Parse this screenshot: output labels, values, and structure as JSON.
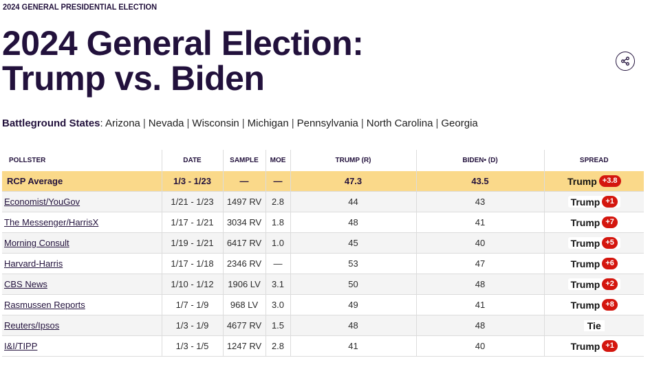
{
  "header": {
    "eyebrow": "2024 GENERAL PRESIDENTIAL ELECTION",
    "title_line1": "2024 General Election:",
    "title_line2": "Trump vs. Biden"
  },
  "battleground": {
    "label": "Battleground States",
    "states": [
      "Arizona",
      "Nevada",
      "Wisconsin",
      "Michigan",
      "Pennsylvania",
      "North Carolina",
      "Georgia"
    ]
  },
  "table": {
    "headers": {
      "pollster": "POLLSTER",
      "date": "DATE",
      "sample": "SAMPLE",
      "moe": "MOE",
      "trump": "TRUMP (R)",
      "biden": "BIDEN",
      "biden_marker": "•",
      "biden_party": "(D)",
      "spread": "SPREAD"
    },
    "average": {
      "pollster": "RCP Average",
      "date": "1/3 - 1/23",
      "sample": "—",
      "moe": "—",
      "trump": "47.3",
      "biden": "43.5",
      "spread_candidate": "Trump",
      "spread_value": "+3.8"
    },
    "rows": [
      {
        "pollster": "Economist/YouGov",
        "date": "1/21 - 1/23",
        "sample": "1497 RV",
        "moe": "2.8",
        "trump": "44",
        "biden": "43",
        "spread_candidate": "Trump",
        "spread_value": "+1"
      },
      {
        "pollster": "The Messenger/HarrisX",
        "date": "1/17 - 1/21",
        "sample": "3034 RV",
        "moe": "1.8",
        "trump": "48",
        "biden": "41",
        "spread_candidate": "Trump",
        "spread_value": "+7"
      },
      {
        "pollster": "Morning Consult",
        "date": "1/19 - 1/21",
        "sample": "6417 RV",
        "moe": "1.0",
        "trump": "45",
        "biden": "40",
        "spread_candidate": "Trump",
        "spread_value": "+5"
      },
      {
        "pollster": "Harvard-Harris",
        "date": "1/17 - 1/18",
        "sample": "2346 RV",
        "moe": "—",
        "trump": "53",
        "biden": "47",
        "spread_candidate": "Trump",
        "spread_value": "+6"
      },
      {
        "pollster": "CBS News",
        "date": "1/10 - 1/12",
        "sample": "1906 LV",
        "moe": "3.1",
        "trump": "50",
        "biden": "48",
        "spread_candidate": "Trump",
        "spread_value": "+2"
      },
      {
        "pollster": "Rasmussen Reports",
        "date": "1/7 - 1/9",
        "sample": "968 LV",
        "moe": "3.0",
        "trump": "49",
        "biden": "41",
        "spread_candidate": "Trump",
        "spread_value": "+8"
      },
      {
        "pollster": "Reuters/Ipsos",
        "date": "1/3 - 1/9",
        "sample": "4677 RV",
        "moe": "1.5",
        "trump": "48",
        "biden": "48",
        "spread_candidate": "Tie",
        "spread_value": ""
      },
      {
        "pollster": "I&I/TIPP",
        "date": "1/3 - 1/5",
        "sample": "1247 RV",
        "moe": "2.8",
        "trump": "41",
        "biden": "40",
        "spread_candidate": "Trump",
        "spread_value": "+1"
      }
    ]
  },
  "colors": {
    "title": "#22113c",
    "average_row": "#fad98a",
    "spread_badge": "#d4160e"
  },
  "icons": {
    "share": "share-icon"
  }
}
